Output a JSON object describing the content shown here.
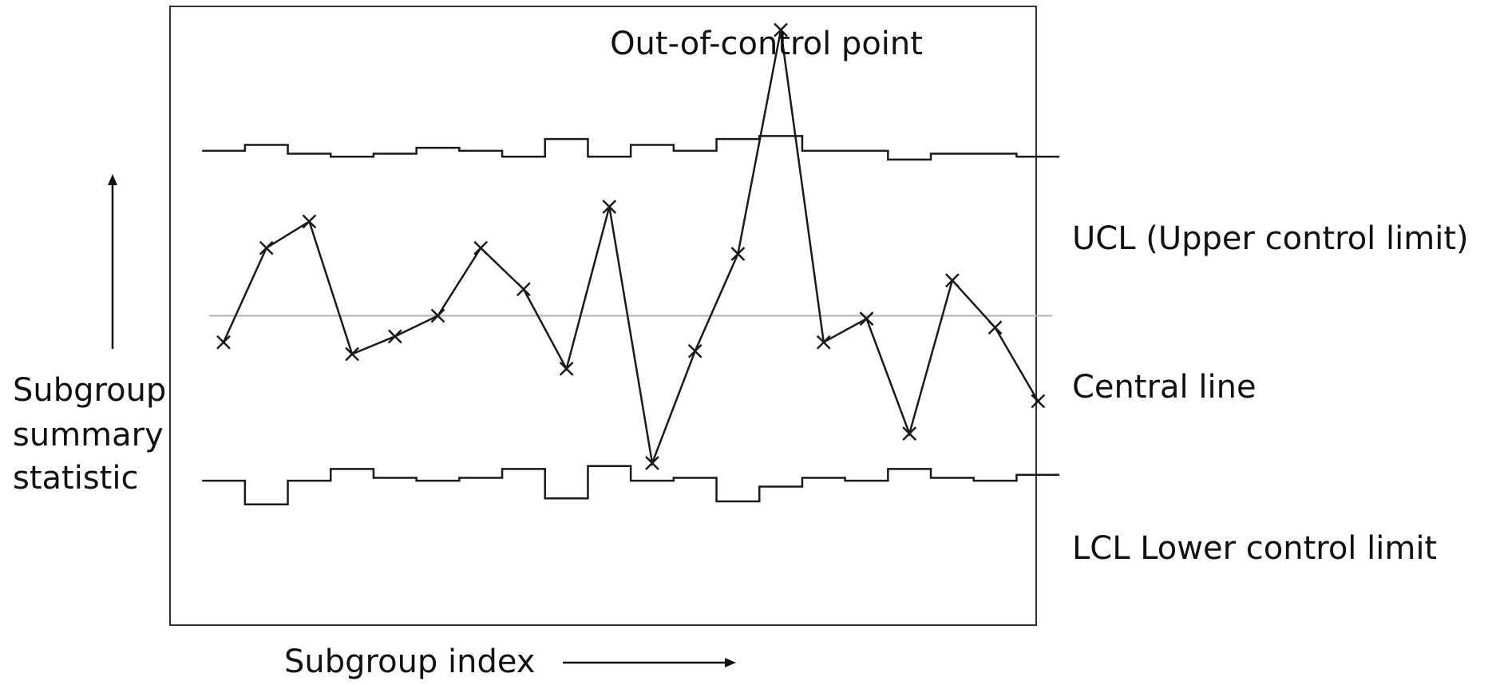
{
  "labels": {
    "annotation": "Out-of-control point",
    "ucl": "UCL (Upper control limit)",
    "central": "Central line",
    "lcl": "LCL Lower control limit",
    "ylabel_lines": [
      "Subgroup",
      "summary",
      "statistic"
    ],
    "xlabel": "Subgroup index"
  },
  "chart_data": {
    "type": "line",
    "x": [
      1,
      2,
      3,
      4,
      5,
      6,
      7,
      8,
      9,
      10,
      11,
      12,
      13,
      14,
      15,
      16,
      17,
      18,
      19,
      20
    ],
    "ylim": [
      -10.5,
      10.5
    ],
    "series": [
      {
        "values": [
          -0.9,
          2.3,
          3.2,
          -1.3,
          -0.7,
          0.0,
          2.3,
          0.9,
          -1.8,
          3.7,
          -5.0,
          -1.2,
          2.1,
          9.7,
          -0.9,
          -0.1,
          -4.0,
          1.2,
          -0.4,
          -2.9
        ],
        "marker": "x"
      }
    ],
    "ucl": [
      5.6,
      5.8,
      5.5,
      5.4,
      5.5,
      5.7,
      5.6,
      5.4,
      6.0,
      5.4,
      5.8,
      5.6,
      6.0,
      6.1,
      5.6,
      5.6,
      5.3,
      5.5,
      5.5,
      5.4
    ],
    "lcl": [
      -5.6,
      -6.4,
      -5.6,
      -5.2,
      -5.5,
      -5.6,
      -5.5,
      -5.2,
      -6.2,
      -5.1,
      -5.6,
      -5.5,
      -6.3,
      -5.8,
      -5.5,
      -5.6,
      -5.2,
      -5.5,
      -5.6,
      -5.4
    ],
    "central": 0,
    "colors": {
      "line": "#1a1a1a",
      "central": "#b0b0b0",
      "frame": "#333333"
    },
    "annotation_point": 14,
    "grid": false
  }
}
